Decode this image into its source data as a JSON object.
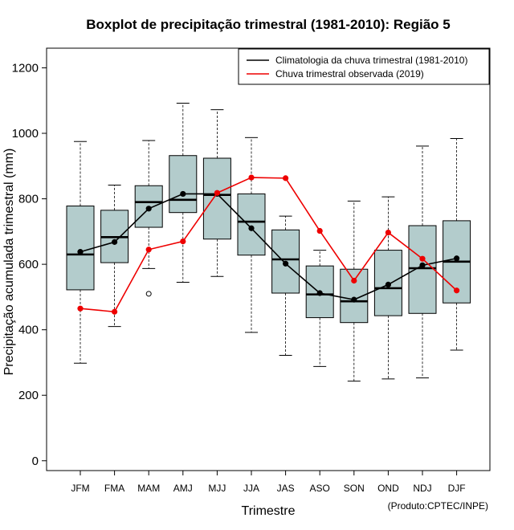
{
  "chart_data": {
    "type": "boxplot",
    "title": "Boxplot de precipitação trimestral (1981-2010): Região 5",
    "xlabel": "Trimestre",
    "ylabel": "Precipitação acumulada trimestral (mm)",
    "credit": "(Produto:CPTEC/INPE)",
    "ylim": [
      -30,
      1260
    ],
    "yticks": [
      0,
      200,
      400,
      600,
      800,
      1000,
      1200
    ],
    "categories": [
      "JFM",
      "FMA",
      "MAM",
      "AMJ",
      "MJJ",
      "JJA",
      "JAS",
      "ASO",
      "SON",
      "OND",
      "NDJ",
      "DJF"
    ],
    "boxes": [
      {
        "min": 298,
        "q1": 522,
        "median": 630,
        "q3": 778,
        "max": 975,
        "outliers": []
      },
      {
        "min": 410,
        "q1": 605,
        "median": 683,
        "q3": 765,
        "max": 842,
        "outliers": []
      },
      {
        "min": 587,
        "q1": 713,
        "median": 790,
        "q3": 840,
        "max": 978,
        "outliers": [
          510
        ]
      },
      {
        "min": 545,
        "q1": 758,
        "median": 797,
        "q3": 932,
        "max": 1092,
        "outliers": []
      },
      {
        "min": 563,
        "q1": 677,
        "median": 812,
        "q3": 924,
        "max": 1072,
        "outliers": []
      },
      {
        "min": 392,
        "q1": 628,
        "median": 730,
        "q3": 815,
        "max": 987,
        "outliers": []
      },
      {
        "min": 322,
        "q1": 512,
        "median": 615,
        "q3": 705,
        "max": 747,
        "outliers": []
      },
      {
        "min": 288,
        "q1": 437,
        "median": 508,
        "q3": 595,
        "max": 643,
        "outliers": []
      },
      {
        "min": 243,
        "q1": 422,
        "median": 487,
        "q3": 585,
        "max": 793,
        "outliers": []
      },
      {
        "min": 250,
        "q1": 443,
        "median": 527,
        "q3": 643,
        "max": 806,
        "outliers": []
      },
      {
        "min": 253,
        "q1": 450,
        "median": 588,
        "q3": 718,
        "max": 961,
        "outliers": []
      },
      {
        "min": 338,
        "q1": 482,
        "median": 608,
        "q3": 733,
        "max": 984,
        "outliers": []
      }
    ],
    "series": [
      {
        "name": "Climatologia da chuva trimestral (1981-2010)",
        "color": "#000000",
        "values": [
          638,
          668,
          770,
          815,
          815,
          710,
          602,
          512,
          492,
          538,
          597,
          618
        ]
      },
      {
        "name": "Chuva trimestral observada (2019)",
        "color": "#ee0000",
        "values": [
          465,
          455,
          645,
          670,
          818,
          865,
          863,
          702,
          550,
          697,
          617,
          520
        ]
      }
    ],
    "box_fill": "#b3cccc",
    "legend_position": "top-right"
  }
}
